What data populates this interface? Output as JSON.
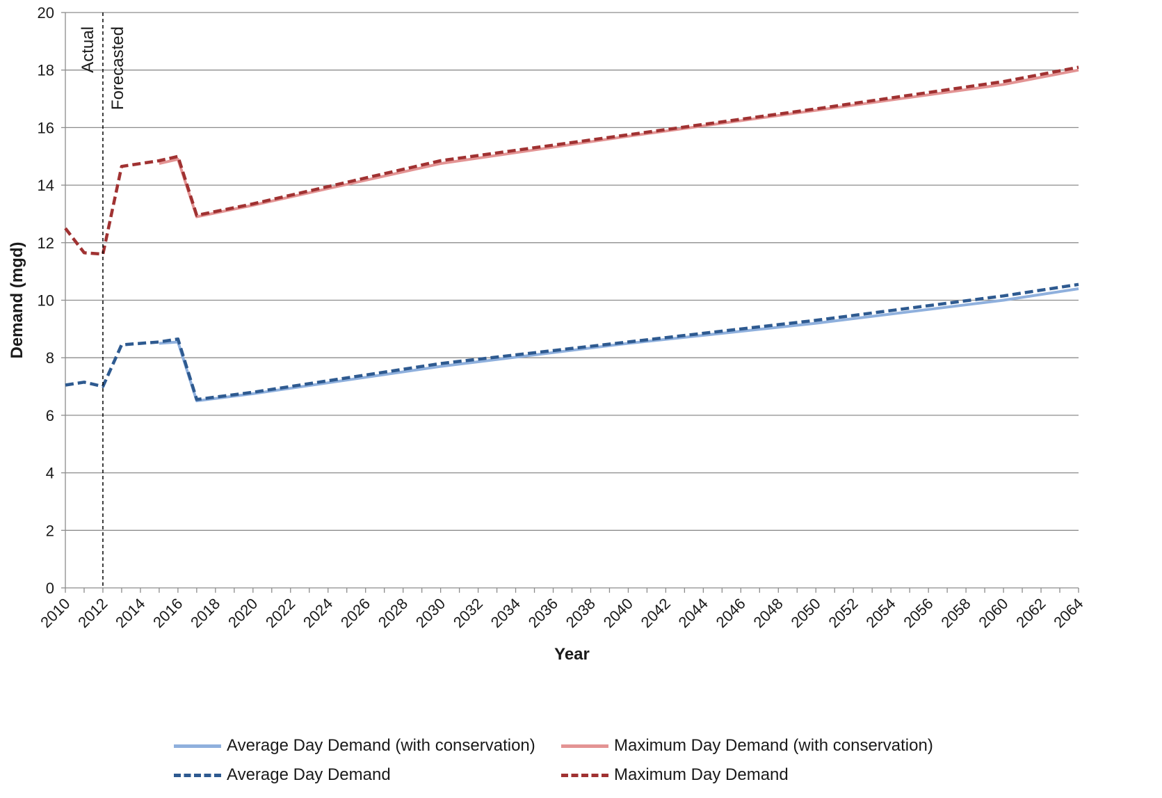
{
  "chart_data": {
    "type": "line",
    "xlabel": "Year",
    "ylabel": "Demand (mgd)",
    "xlim": [
      2010,
      2064
    ],
    "ylim": [
      0,
      20
    ],
    "x_ticks": [
      "2010",
      "2012",
      "2014",
      "2016",
      "2018",
      "2020",
      "2022",
      "2024",
      "2026",
      "2028",
      "2030",
      "2032",
      "2034",
      "2036",
      "2038",
      "2040",
      "2042",
      "2044",
      "2046",
      "2048",
      "2050",
      "2052",
      "2054",
      "2056",
      "2058",
      "2060",
      "2062",
      "2064"
    ],
    "y_ticks": [
      "0",
      "2",
      "4",
      "6",
      "8",
      "10",
      "12",
      "14",
      "16",
      "18",
      "20"
    ],
    "grid": "horizontal",
    "annotations": {
      "divider_year": 2012,
      "left_label": "Actual",
      "right_label": "Forecasted"
    },
    "legend_position": "bottom",
    "colors": {
      "avg_cons": "#8fb0dd",
      "max_cons": "#e39494",
      "avg": "#2e5a90",
      "max": "#a03232"
    },
    "series": [
      {
        "name": "Average Day Demand (with conservation)",
        "style": "solid",
        "color_key": "avg_cons",
        "x": [
          2015,
          2016,
          2017,
          2020,
          2030,
          2040,
          2050,
          2060,
          2064
        ],
        "y": [
          8.5,
          8.55,
          6.5,
          6.75,
          7.7,
          8.5,
          9.2,
          10.0,
          10.4
        ]
      },
      {
        "name": "Maximum Day Demand (with conservation)",
        "style": "solid",
        "color_key": "max_cons",
        "x": [
          2015,
          2016,
          2017,
          2020,
          2030,
          2040,
          2050,
          2060,
          2064
        ],
        "y": [
          14.75,
          14.9,
          12.9,
          13.3,
          14.75,
          15.7,
          16.6,
          17.5,
          18.0
        ]
      },
      {
        "name": "Average Day Demand",
        "style": "dashed",
        "color_key": "avg",
        "x": [
          2010,
          2011,
          2012,
          2013,
          2015,
          2016,
          2017,
          2020,
          2030,
          2040,
          2050,
          2060,
          2064
        ],
        "y": [
          7.05,
          7.15,
          7.0,
          8.45,
          8.55,
          8.65,
          6.55,
          6.8,
          7.8,
          8.55,
          9.3,
          10.15,
          10.55
        ]
      },
      {
        "name": "Maximum Day Demand",
        "style": "dashed",
        "color_key": "max",
        "x": [
          2010,
          2011,
          2012,
          2013,
          2015,
          2016,
          2017,
          2020,
          2030,
          2040,
          2050,
          2060,
          2064
        ],
        "y": [
          12.5,
          11.65,
          11.6,
          14.65,
          14.85,
          15.0,
          12.95,
          13.35,
          14.85,
          15.75,
          16.65,
          17.6,
          18.1
        ]
      }
    ]
  }
}
